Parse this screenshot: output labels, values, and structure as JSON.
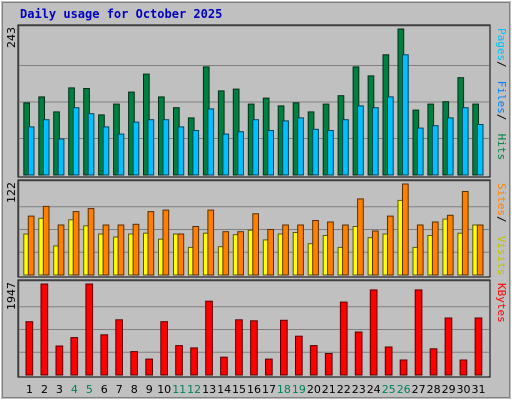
{
  "page": {
    "title": "Daily usage for October 2025"
  },
  "colors": {
    "background": "#c0c0c0",
    "title": "#0000c0",
    "hits": "#008040",
    "files": "#00c0ff",
    "pages": "#00c0ff",
    "visits": "#ffff00",
    "sites": "#ff8000",
    "kbytes": "#ff0000",
    "weekend_label": "#00805c",
    "weekday_label": "#000000"
  },
  "chart_data": [
    {
      "type": "bar",
      "panel": "hits-files-pages",
      "categories": [
        "1",
        "2",
        "3",
        "4",
        "5",
        "6",
        "7",
        "8",
        "9",
        "10",
        "11",
        "12",
        "13",
        "14",
        "15",
        "16",
        "17",
        "18",
        "19",
        "20",
        "21",
        "22",
        "23",
        "24",
        "25",
        "26",
        "27",
        "28",
        "29",
        "30",
        "31"
      ],
      "weekend_days": [
        "4",
        "5",
        "11",
        "12",
        "18",
        "19",
        "25",
        "26"
      ],
      "y_max_label": "243",
      "ylim": [
        0,
        243
      ],
      "series": [
        {
          "name": "Hits",
          "values": [
            120,
            130,
            105,
            145,
            144,
            100,
            118,
            138,
            168,
            130,
            112,
            95,
            180,
            140,
            143,
            118,
            128,
            115,
            120,
            105,
            118,
            132,
            180,
            165,
            200,
            243,
            108,
            118,
            122,
            162,
            118
          ]
        },
        {
          "name": "Files",
          "values": [
            80,
            92,
            60,
            112,
            102,
            80,
            68,
            88,
            92,
            92,
            80,
            74,
            110,
            68,
            72,
            92,
            74,
            90,
            95,
            76,
            74,
            92,
            115,
            112,
            130,
            200,
            78,
            82,
            95,
            112,
            84
          ]
        },
        {
          "name": "Pages",
          "values": [
            0,
            0,
            0,
            0,
            0,
            0,
            0,
            0,
            0,
            0,
            0,
            0,
            0,
            0,
            0,
            0,
            0,
            0,
            0,
            0,
            0,
            0,
            0,
            0,
            0,
            0,
            0,
            0,
            0,
            0,
            0
          ]
        }
      ],
      "axis_labels": [
        {
          "text": "Pages",
          "color": "#00c0ff"
        },
        {
          "text": " / ",
          "color": "#000000"
        },
        {
          "text": "Files",
          "color": "#0080ff"
        },
        {
          "text": " / ",
          "color": "#000000"
        },
        {
          "text": "Hits",
          "color": "#008040"
        }
      ]
    },
    {
      "type": "bar",
      "panel": "visits-sites",
      "categories": [
        "1",
        "2",
        "3",
        "4",
        "5",
        "6",
        "7",
        "8",
        "9",
        "10",
        "11",
        "12",
        "13",
        "14",
        "15",
        "16",
        "17",
        "18",
        "19",
        "20",
        "21",
        "22",
        "23",
        "24",
        "25",
        "26",
        "27",
        "28",
        "29",
        "30",
        "31"
      ],
      "y_max_label": "122",
      "ylim": [
        0,
        122
      ],
      "series": [
        {
          "name": "Visits",
          "values": [
            55,
            76,
            39,
            74,
            66,
            55,
            51,
            55,
            56,
            48,
            55,
            37,
            56,
            38,
            54,
            60,
            47,
            55,
            57,
            42,
            53,
            37,
            65,
            50,
            55,
            100,
            37,
            53,
            75,
            56,
            67
          ]
        },
        {
          "name": "Sites",
          "values": [
            79,
            92,
            67,
            85,
            89,
            67,
            67,
            68,
            85,
            87,
            55,
            65,
            87,
            58,
            58,
            82,
            61,
            67,
            67,
            73,
            71,
            67,
            102,
            59,
            79,
            122,
            67,
            71,
            80,
            112,
            67
          ]
        }
      ],
      "axis_labels": [
        {
          "text": "Sites",
          "color": "#ff8000"
        },
        {
          "text": " / ",
          "color": "#000000"
        },
        {
          "text": "Visits",
          "color": "#c0c000"
        }
      ]
    },
    {
      "type": "bar",
      "panel": "kbytes",
      "categories": [
        "1",
        "2",
        "3",
        "4",
        "5",
        "6",
        "7",
        "8",
        "9",
        "10",
        "11",
        "12",
        "13",
        "14",
        "15",
        "16",
        "17",
        "18",
        "19",
        "20",
        "21",
        "22",
        "23",
        "24",
        "25",
        "26",
        "27",
        "28",
        "29",
        "30",
        "31"
      ],
      "y_max_label": "1947",
      "ylim": [
        0,
        1947
      ],
      "series": [
        {
          "name": "KBytes",
          "values": [
            1140,
            1947,
            620,
            800,
            1947,
            860,
            1180,
            500,
            340,
            1140,
            630,
            580,
            1580,
            380,
            1180,
            1160,
            340,
            1170,
            830,
            630,
            460,
            1560,
            920,
            1820,
            600,
            320,
            1820,
            560,
            1220,
            320,
            1220
          ]
        }
      ],
      "axis_labels": [
        {
          "text": "KBytes",
          "color": "#ff0000"
        }
      ]
    }
  ]
}
